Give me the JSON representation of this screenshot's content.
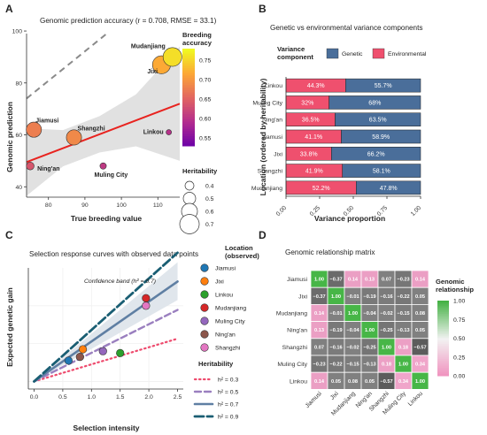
{
  "colors": {
    "genetic": "#4a6e9a",
    "environmental": "#ef506e",
    "fit_line": "#e8231f",
    "band": "#d9d9d9"
  },
  "chart_data": [
    {
      "panel": "A",
      "type": "scatter",
      "title": "Genomic prediction accuracy (r = 0.708, RMSE = 33.1)",
      "xlabel": "True breeding value",
      "ylabel": "Genomic prediction",
      "xlim": [
        74,
        116
      ],
      "ylim": [
        36,
        99
      ],
      "xticks": [
        80,
        90,
        100,
        110
      ],
      "yticks": [
        40,
        60,
        80,
        100
      ],
      "points": [
        {
          "label": "Jiamusi",
          "x": 76,
          "y": 62,
          "accuracy": 0.68,
          "heritability": 0.58
        },
        {
          "label": "Ning'an",
          "x": 75,
          "y": 48,
          "accuracy": 0.64,
          "heritability": 0.37
        },
        {
          "label": "Shangzhi",
          "x": 87,
          "y": 59,
          "accuracy": 0.69,
          "heritability": 0.58
        },
        {
          "label": "Muling City",
          "x": 95,
          "y": 48,
          "accuracy": 0.61,
          "heritability": 0.33
        },
        {
          "label": "Linkou",
          "x": 113,
          "y": 61,
          "accuracy": 0.6,
          "heritability": 0.3
        },
        {
          "label": "Jixi",
          "x": 111,
          "y": 87,
          "accuracy": 0.72,
          "heritability": 0.66
        },
        {
          "label": "Mudanjiang",
          "x": 114,
          "y": 90,
          "accuracy": 0.76,
          "heritability": 0.68
        }
      ],
      "fit_line": {
        "x": [
          74,
          116
        ],
        "y": [
          49.5,
          72
        ]
      },
      "identity_line": {
        "x": [
          74,
          96
        ],
        "y": [
          74,
          99
        ]
      },
      "legend_color": {
        "title": "Breeding accuracy",
        "ticks": [
          0.55,
          0.6,
          0.65,
          0.7,
          0.75
        ],
        "range": [
          0.53,
          0.78
        ]
      },
      "legend_size": {
        "title": "Heritability",
        "values": [
          0.4,
          0.5,
          0.6,
          0.7
        ]
      }
    },
    {
      "panel": "B",
      "type": "bar",
      "orientation": "horizontal",
      "stacked": true,
      "title": "Genetic vs environmental variance components",
      "xlabel": "Variance proportion",
      "ylabel": "Location (ordered by heritability)",
      "xlim": [
        0,
        1
      ],
      "xticks": [
        0.0,
        0.25,
        0.5,
        0.75,
        1.0
      ],
      "legend_title": "Variance component",
      "categories": [
        "Linkou",
        "Muling City",
        "Ning'an",
        "Jiamusi",
        "Jixi",
        "Shangzhi",
        "Mudanjiang"
      ],
      "series": [
        {
          "name": "Environmental",
          "values": [
            0.443,
            0.32,
            0.365,
            0.411,
            0.338,
            0.419,
            0.522
          ],
          "labels": [
            "44.3%",
            "32%",
            "36.5%",
            "41.1%",
            "33.8%",
            "41.9%",
            "52.2%"
          ]
        },
        {
          "name": "Genetic",
          "values": [
            0.557,
            0.68,
            0.635,
            0.589,
            0.662,
            0.581,
            0.478
          ],
          "labels": [
            "55.7%",
            "68%",
            "63.5%",
            "58.9%",
            "66.2%",
            "58.1%",
            "47.8%"
          ]
        }
      ],
      "legend_order": [
        "Genetic",
        "Environmental"
      ]
    },
    {
      "panel": "C",
      "type": "line",
      "title": "Selection response curves with observed data points",
      "xlabel": "Selection intensity",
      "ylabel": "Expected genetic gain",
      "xlim": [
        -0.1,
        2.6
      ],
      "ylim": [
        -2,
        30
      ],
      "xticks": [
        0.0,
        0.5,
        1.0,
        1.5,
        2.0,
        2.5
      ],
      "annotation": "Confidence band (h² = 0.7)",
      "lines_legend_title": "Heritability",
      "series": [
        {
          "name": "h² = 0.3",
          "h2": 0.3,
          "x": [
            0,
            2.5
          ],
          "y": [
            0,
            11.3
          ],
          "color": "#ee4b6e"
        },
        {
          "name": "h² = 0.5",
          "h2": 0.5,
          "x": [
            0,
            2.5
          ],
          "y": [
            0,
            18.9
          ],
          "color": "#9a7fbf"
        },
        {
          "name": "h² = 0.7",
          "h2": 0.7,
          "x": [
            0,
            2.5
          ],
          "y": [
            0,
            26.4
          ],
          "color": "#5f7fa3"
        },
        {
          "name": "h² = 0.9",
          "h2": 0.9,
          "x": [
            0,
            2.5
          ],
          "y": [
            0,
            34.0
          ],
          "color": "#1a5e73"
        }
      ],
      "band": {
        "x": [
          0,
          2.5
        ],
        "y_low": [
          0,
          21.5
        ],
        "y_high": [
          0,
          31.5
        ]
      },
      "points_legend_title": "Location (observed)",
      "points": [
        {
          "label": "Jiamusi",
          "x": 0.6,
          "y": 5.5,
          "color": "#1f77b4"
        },
        {
          "label": "Jixi",
          "x": 0.85,
          "y": 8.5,
          "color": "#ff7f0e"
        },
        {
          "label": "Linkou",
          "x": 1.5,
          "y": 7.5,
          "color": "#2ca02c"
        },
        {
          "label": "Mudanjiang",
          "x": 1.95,
          "y": 22.0,
          "color": "#d62728"
        },
        {
          "label": "Muling City",
          "x": 1.2,
          "y": 8.0,
          "color": "#9467bd"
        },
        {
          "label": "Ning'an",
          "x": 0.8,
          "y": 6.5,
          "color": "#8c564b"
        },
        {
          "label": "Shangzhi",
          "x": 1.95,
          "y": 20.0,
          "color": "#e377c2"
        }
      ]
    },
    {
      "panel": "D",
      "type": "heatmap",
      "title": "Genomic relationship matrix",
      "legend_title": "Genomic relationship",
      "legend_ticks": [
        0.0,
        0.25,
        0.5,
        0.75,
        1.0
      ],
      "rows": [
        "Jiamusi",
        "Jixi",
        "Mudanjiang",
        "Ning'an",
        "Shangzhi",
        "Muling City",
        "Linkou"
      ],
      "cols": [
        "Jiamusi",
        "Jixi",
        "Mudanjiang",
        "Ning'an",
        "Shangzhi",
        "Muling City",
        "Linkou"
      ],
      "cells": [
        [
          "1.00",
          "−0.37",
          "0.14",
          "0.13",
          "0.07",
          "−0.23",
          "0.14"
        ],
        [
          "−0.37",
          "1.00",
          "−0.01",
          "−0.19",
          "−0.16",
          "−0.22",
          "0.05"
        ],
        [
          "0.14",
          "−0.01",
          "1.00",
          "−0.04",
          "−0.02",
          "−0.15",
          "0.08"
        ],
        [
          "0.13",
          "−0.19",
          "−0.04",
          "1.00",
          "−0.25",
          "−0.13",
          "0.05"
        ],
        [
          "0.07",
          "−0.16",
          "−0.02",
          "−0.25",
          "1.00",
          "0.18",
          "−0.57"
        ],
        [
          "−0.23",
          "−0.22",
          "−0.15",
          "−0.13",
          "0.18",
          "1.00",
          "0.34"
        ],
        [
          "0.14",
          "0.05",
          "0.08",
          "0.05",
          "−0.57",
          "0.34",
          "1.00"
        ]
      ]
    }
  ]
}
